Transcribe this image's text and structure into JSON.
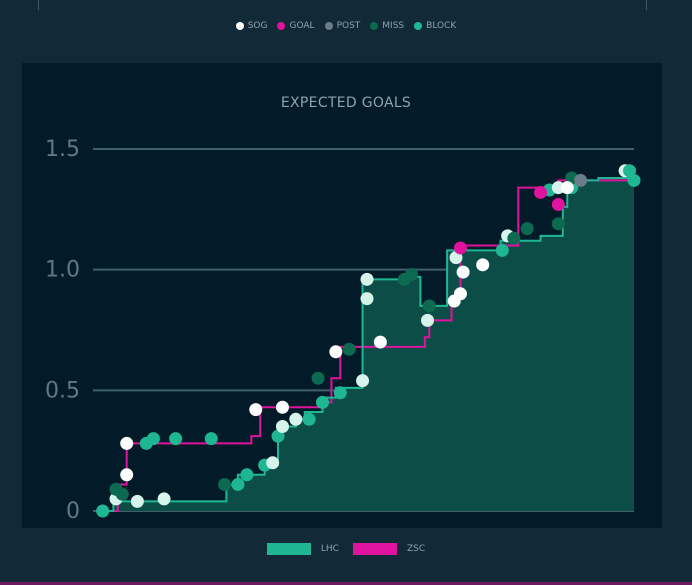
{
  "legend_top": [
    {
      "label": "SOG",
      "color": "#ffffff"
    },
    {
      "label": "GOAL",
      "color": "#e0139e"
    },
    {
      "label": "POST",
      "color": "#6a7c87"
    },
    {
      "label": "MISS",
      "color": "#0b6a50"
    },
    {
      "label": "BLOCK",
      "color": "#1fb793"
    }
  ],
  "chart_data": {
    "type": "line",
    "title": "EXPECTED GOALS",
    "xlabel": "",
    "ylabel": "",
    "ylim": [
      0,
      1.5
    ],
    "xlim": [
      0,
      60
    ],
    "yticks": [
      "1.5",
      "1.0",
      "0.5",
      "0"
    ],
    "grid": true,
    "legend_position": "bottom",
    "series": [
      {
        "name": "LHC",
        "color": "#1fb793",
        "steps": [
          [
            0,
            0
          ],
          [
            1.5,
            0.04
          ],
          [
            14,
            0.04
          ],
          [
            14.2,
            0.11
          ],
          [
            15.5,
            0.15
          ],
          [
            18.5,
            0.19
          ],
          [
            20,
            0.32
          ],
          [
            20.5,
            0.35
          ],
          [
            22,
            0.38
          ],
          [
            23,
            0.41
          ],
          [
            25,
            0.47
          ],
          [
            26.5,
            0.51
          ],
          [
            29.5,
            0.96
          ],
          [
            34,
            0.97
          ],
          [
            36,
            0.85
          ],
          [
            39,
            1.08
          ],
          [
            45,
            1.12
          ],
          [
            49.5,
            1.14
          ],
          [
            52,
            1.26
          ],
          [
            52.5,
            1.34
          ],
          [
            53,
            1.37
          ],
          [
            56,
            1.38
          ],
          [
            60,
            1.38
          ]
        ],
        "area": true
      },
      {
        "name": "ZSC",
        "color": "#e0139e",
        "steps": [
          [
            0,
            0
          ],
          [
            2,
            0.11
          ],
          [
            3,
            0.28
          ],
          [
            17,
            0.31
          ],
          [
            18,
            0.43
          ],
          [
            24.5,
            0.45
          ],
          [
            26,
            0.55
          ],
          [
            27,
            0.68
          ],
          [
            36.5,
            0.72
          ],
          [
            37,
            0.79
          ],
          [
            39.5,
            0.89
          ],
          [
            40.5,
            1.1
          ],
          [
            46,
            1.1
          ],
          [
            47,
            1.34
          ],
          [
            51.5,
            1.37
          ],
          [
            56,
            1.37
          ],
          [
            60,
            1.37
          ]
        ],
        "area": false
      }
    ],
    "events": [
      {
        "team": "LHC",
        "type": "BLOCK",
        "x": 0.3,
        "y": 0.0
      },
      {
        "team": "LHC",
        "type": "SOG",
        "x": 1.8,
        "y": 0.05
      },
      {
        "team": "LHC",
        "type": "MISS",
        "x": 2.5,
        "y": 0.07
      },
      {
        "team": "LHC",
        "type": "SOG",
        "x": 4.2,
        "y": 0.04
      },
      {
        "team": "LHC",
        "type": "SOG",
        "x": 7.2,
        "y": 0.05
      },
      {
        "team": "LHC",
        "type": "MISS",
        "x": 14.0,
        "y": 0.11
      },
      {
        "team": "LHC",
        "type": "BLOCK",
        "x": 15.5,
        "y": 0.11
      },
      {
        "team": "LHC",
        "type": "BLOCK",
        "x": 16.5,
        "y": 0.15
      },
      {
        "team": "LHC",
        "type": "BLOCK",
        "x": 18.5,
        "y": 0.19
      },
      {
        "team": "LHC",
        "type": "SOG",
        "x": 19.4,
        "y": 0.2
      },
      {
        "team": "LHC",
        "type": "BLOCK",
        "x": 20.0,
        "y": 0.31
      },
      {
        "team": "LHC",
        "type": "SOG",
        "x": 20.5,
        "y": 0.35
      },
      {
        "team": "LHC",
        "type": "SOG",
        "x": 22.0,
        "y": 0.38
      },
      {
        "team": "LHC",
        "type": "BLOCK",
        "x": 23.5,
        "y": 0.38
      },
      {
        "team": "LHC",
        "type": "BLOCK",
        "x": 25.0,
        "y": 0.45
      },
      {
        "team": "LHC",
        "type": "MISS",
        "x": 24.5,
        "y": 0.55
      },
      {
        "team": "LHC",
        "type": "BLOCK",
        "x": 27.0,
        "y": 0.49
      },
      {
        "team": "LHC",
        "type": "SOG",
        "x": 29.5,
        "y": 0.54
      },
      {
        "team": "LHC",
        "type": "SOG",
        "x": 30.0,
        "y": 0.88
      },
      {
        "team": "LHC",
        "type": "SOG",
        "x": 30.0,
        "y": 0.96
      },
      {
        "team": "LHC",
        "type": "MISS",
        "x": 34.2,
        "y": 0.96
      },
      {
        "team": "LHC",
        "type": "MISS",
        "x": 35.0,
        "y": 0.98
      },
      {
        "team": "LHC",
        "type": "SOG",
        "x": 36.8,
        "y": 0.79
      },
      {
        "team": "LHC",
        "type": "MISS",
        "x": 37.0,
        "y": 0.85
      },
      {
        "team": "LHC",
        "type": "SOG",
        "x": 40.0,
        "y": 1.05
      },
      {
        "team": "LHC",
        "type": "BLOCK",
        "x": 45.2,
        "y": 1.08
      },
      {
        "team": "LHC",
        "type": "SOG",
        "x": 45.8,
        "y": 1.14
      },
      {
        "team": "LHC",
        "type": "MISS",
        "x": 46.5,
        "y": 1.13
      },
      {
        "team": "LHC",
        "type": "MISS",
        "x": 48.0,
        "y": 1.17
      },
      {
        "team": "LHC",
        "type": "MISS",
        "x": 51.5,
        "y": 1.19
      },
      {
        "team": "LHC",
        "type": "BLOCK",
        "x": 50.5,
        "y": 1.33
      },
      {
        "team": "LHC",
        "type": "SOG",
        "x": 51.5,
        "y": 1.34
      },
      {
        "team": "LHC",
        "type": "BLOCK",
        "x": 53.0,
        "y": 1.34
      },
      {
        "team": "LHC",
        "type": "MISS",
        "x": 53.0,
        "y": 1.38
      },
      {
        "team": "LHC",
        "type": "POST",
        "x": 54.0,
        "y": 1.37
      },
      {
        "team": "LHC",
        "type": "SOG",
        "x": 59.0,
        "y": 1.41
      },
      {
        "team": "LHC",
        "type": "BLOCK",
        "x": 59.5,
        "y": 1.41
      },
      {
        "team": "LHC",
        "type": "BLOCK",
        "x": 60.0,
        "y": 1.37
      },
      {
        "team": "ZSC",
        "type": "MISS",
        "x": 1.8,
        "y": 0.09
      },
      {
        "team": "ZSC",
        "type": "SOG",
        "x": 3.0,
        "y": 0.15
      },
      {
        "team": "ZSC",
        "type": "SOG",
        "x": 3.0,
        "y": 0.28
      },
      {
        "team": "ZSC",
        "type": "BLOCK",
        "x": 5.2,
        "y": 0.28
      },
      {
        "team": "ZSC",
        "type": "BLOCK",
        "x": 6.0,
        "y": 0.3
      },
      {
        "team": "ZSC",
        "type": "BLOCK",
        "x": 8.5,
        "y": 0.3
      },
      {
        "team": "ZSC",
        "type": "BLOCK",
        "x": 12.5,
        "y": 0.3
      },
      {
        "team": "ZSC",
        "type": "SOG",
        "x": 17.5,
        "y": 0.42
      },
      {
        "team": "ZSC",
        "type": "SOG",
        "x": 20.5,
        "y": 0.43
      },
      {
        "team": "ZSC",
        "type": "SOG",
        "x": 26.5,
        "y": 0.66
      },
      {
        "team": "ZSC",
        "type": "MISS",
        "x": 28.0,
        "y": 0.67
      },
      {
        "team": "ZSC",
        "type": "SOG",
        "x": 31.5,
        "y": 0.7
      },
      {
        "team": "ZSC",
        "type": "SOG",
        "x": 39.8,
        "y": 0.87
      },
      {
        "team": "ZSC",
        "type": "SOG",
        "x": 40.5,
        "y": 0.9
      },
      {
        "team": "ZSC",
        "type": "SOG",
        "x": 40.8,
        "y": 0.99
      },
      {
        "team": "ZSC",
        "type": "GOAL",
        "x": 40.5,
        "y": 1.09
      },
      {
        "team": "ZSC",
        "type": "SOG",
        "x": 43.0,
        "y": 1.02
      },
      {
        "team": "ZSC",
        "type": "GOAL",
        "x": 49.5,
        "y": 1.32
      },
      {
        "team": "ZSC",
        "type": "GOAL",
        "x": 51.5,
        "y": 1.27
      },
      {
        "team": "ZSC",
        "type": "SOG",
        "x": 52.5,
        "y": 1.34
      }
    ]
  },
  "legend_bottom": [
    {
      "label": "LHC",
      "color": "#1fb793"
    },
    {
      "label": "ZSC",
      "color": "#e0139e"
    }
  ]
}
